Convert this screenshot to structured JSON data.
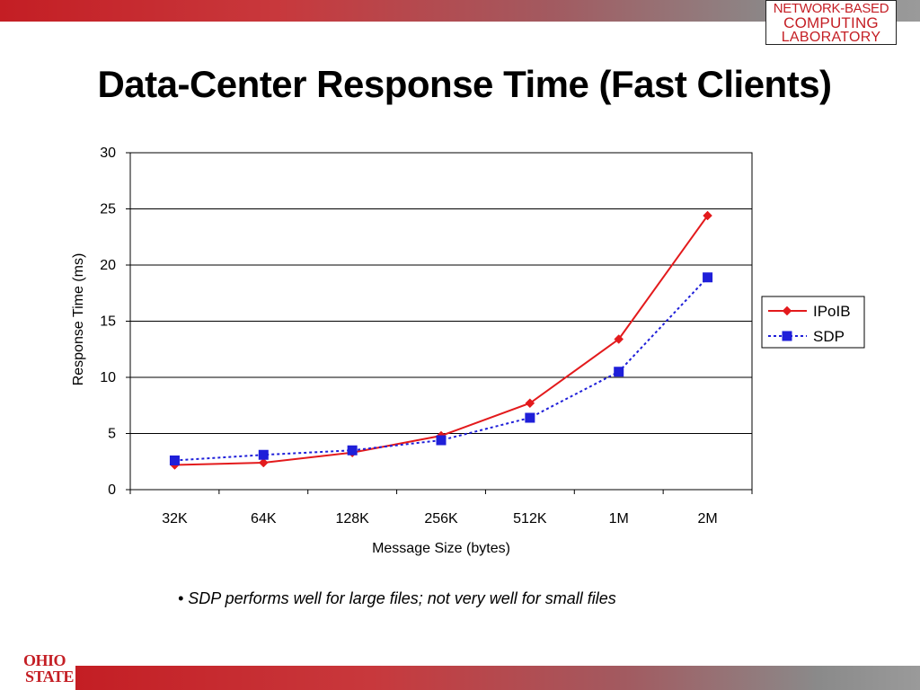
{
  "slide": {
    "title": "Data-Center Response Time (Fast Clients)",
    "bullet": "• SDP performs well for large files; not very well for small files"
  },
  "logo": {
    "line1": "NETWORK-BASED",
    "line2": "COMPUTING",
    "line3": "LABORATORY"
  },
  "osu": {
    "line1": "OHIO",
    "line2": "STATE"
  },
  "colors": {
    "ipoib": "#e31a1c",
    "sdp": "#1f1fd9",
    "brand_red": "#c41e24"
  },
  "chart_data": {
    "type": "line",
    "categories": [
      "32K",
      "64K",
      "128K",
      "256K",
      "512K",
      "1M",
      "2M"
    ],
    "series": [
      {
        "name": "IPoIB",
        "values": [
          2.2,
          2.4,
          3.3,
          4.8,
          7.7,
          13.4,
          24.4
        ],
        "style": "solid",
        "marker": "diamond"
      },
      {
        "name": "SDP",
        "values": [
          2.6,
          3.1,
          3.5,
          4.4,
          6.4,
          10.5,
          18.9
        ],
        "style": "dotted",
        "marker": "square"
      }
    ],
    "xlabel": "Message Size (bytes)",
    "ylabel": "Response Time (ms)",
    "ylim": [
      0,
      30
    ],
    "yticks": [
      0,
      5,
      10,
      15,
      20,
      25,
      30
    ],
    "grid": true,
    "legend": "right"
  }
}
